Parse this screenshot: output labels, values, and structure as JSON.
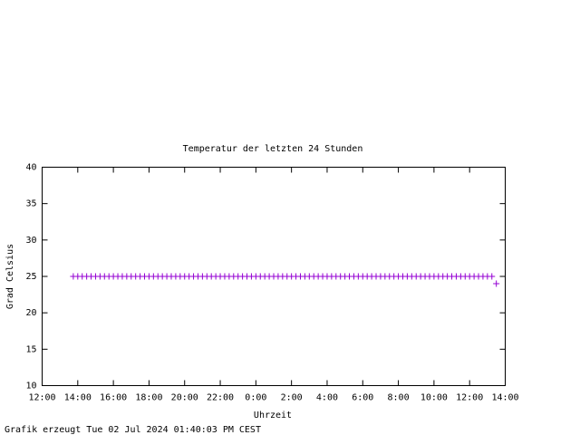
{
  "chart_data": {
    "type": "scatter",
    "title": "Temperatur der letzten 24 Stunden",
    "x_label": "Uhrzeit",
    "y_label": "Grad Celsius",
    "footer": "Grafik erzeugt Tue 02 Jul 2024 01:40:03 PM CEST",
    "xlim": [
      0,
      26
    ],
    "xticks": [
      {
        "value": 0,
        "label": "12:00"
      },
      {
        "value": 2,
        "label": "14:00"
      },
      {
        "value": 4,
        "label": "16:00"
      },
      {
        "value": 6,
        "label": "18:00"
      },
      {
        "value": 8,
        "label": "20:00"
      },
      {
        "value": 10,
        "label": "22:00"
      },
      {
        "value": 12,
        "label": "0:00"
      },
      {
        "value": 14,
        "label": "2:00"
      },
      {
        "value": 16,
        "label": "4:00"
      },
      {
        "value": 18,
        "label": "6:00"
      },
      {
        "value": 20,
        "label": "8:00"
      },
      {
        "value": 22,
        "label": "10:00"
      },
      {
        "value": 24,
        "label": "12:00"
      },
      {
        "value": 26,
        "label": "14:00"
      }
    ],
    "ylim": [
      10,
      40
    ],
    "yticks": [
      10,
      15,
      20,
      25,
      30,
      35,
      40
    ],
    "color": "#9400d3",
    "x": [
      1.75,
      2,
      2.25,
      2.5,
      2.75,
      3,
      3.25,
      3.5,
      3.75,
      4,
      4.25,
      4.5,
      4.75,
      5,
      5.25,
      5.5,
      5.75,
      6,
      6.25,
      6.5,
      6.75,
      7,
      7.25,
      7.5,
      7.75,
      8,
      8.25,
      8.5,
      8.75,
      9,
      9.25,
      9.5,
      9.75,
      10,
      10.25,
      10.5,
      10.75,
      11,
      11.25,
      11.5,
      11.75,
      12,
      12.25,
      12.5,
      12.75,
      13,
      13.25,
      13.5,
      13.75,
      14,
      14.25,
      14.5,
      14.75,
      15,
      15.25,
      15.5,
      15.75,
      16,
      16.25,
      16.5,
      16.75,
      17,
      17.25,
      17.5,
      17.75,
      18,
      18.25,
      18.5,
      18.75,
      19,
      19.25,
      19.5,
      19.75,
      20,
      20.25,
      20.5,
      20.75,
      21,
      21.25,
      21.5,
      21.75,
      22,
      22.25,
      22.5,
      22.75,
      23,
      23.25,
      23.5,
      23.75,
      24,
      24.25,
      24.5,
      24.75,
      25,
      25.25,
      25.5
    ],
    "values": [
      25,
      25,
      25,
      25,
      25,
      25,
      25,
      25,
      25,
      25,
      25,
      25,
      25,
      25,
      25,
      25,
      25,
      25,
      25,
      25,
      25,
      25,
      25,
      25,
      25,
      25,
      25,
      25,
      25,
      25,
      25,
      25,
      25,
      25,
      25,
      25,
      25,
      25,
      25,
      25,
      25,
      25,
      25,
      25,
      25,
      25,
      25,
      25,
      25,
      25,
      25,
      25,
      25,
      25,
      25,
      25,
      25,
      25,
      25,
      25,
      25,
      25,
      25,
      25,
      25,
      25,
      25,
      25,
      25,
      25,
      25,
      25,
      25,
      25,
      25,
      25,
      25,
      25,
      25,
      25,
      25,
      25,
      25,
      25,
      25,
      25,
      25,
      25,
      25,
      25,
      25,
      25,
      25,
      25,
      25,
      24
    ]
  }
}
